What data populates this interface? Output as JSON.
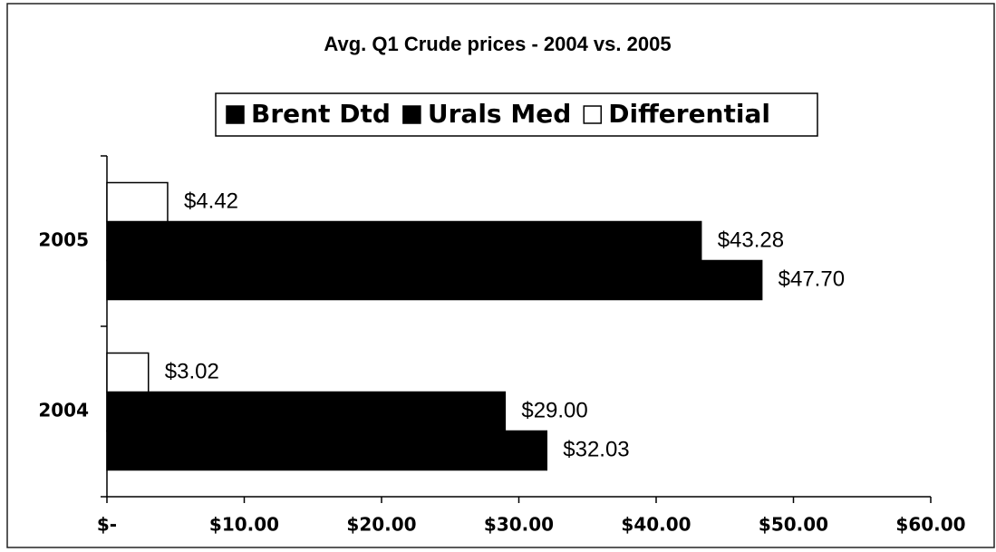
{
  "chart_data": {
    "type": "hbar",
    "title": "Avg. Q1 Crude prices - 2004 vs. 2005",
    "categories": [
      "2005",
      "2004"
    ],
    "series": [
      {
        "name": "Brent Dtd",
        "color": "#000000",
        "values": [
          47.7,
          32.03
        ],
        "value_labels": [
          "$47.70",
          "$32.03"
        ]
      },
      {
        "name": "Urals Med",
        "color": "#000000",
        "values": [
          43.28,
          29.0
        ],
        "value_labels": [
          "$43.28",
          "$29.00"
        ]
      },
      {
        "name": "Differential",
        "color": "#ffffff",
        "values": [
          4.42,
          3.02
        ],
        "value_labels": [
          "$4.42",
          "$3.02"
        ]
      }
    ],
    "xlim": [
      0,
      60
    ],
    "xticks": [
      {
        "value": 0,
        "label": "$-"
      },
      {
        "value": 10,
        "label": "$10.00"
      },
      {
        "value": 20,
        "label": "$20.00"
      },
      {
        "value": 30,
        "label": "$30.00"
      },
      {
        "value": 40,
        "label": "$40.00"
      },
      {
        "value": 50,
        "label": "$50.00"
      },
      {
        "value": 60,
        "label": "$60.00"
      }
    ],
    "grid": false,
    "legend": "top"
  }
}
